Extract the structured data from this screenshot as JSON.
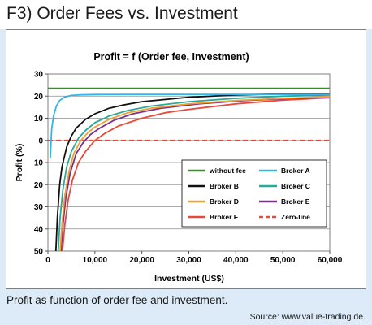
{
  "header": {
    "title": "F3) Order Fees vs. Investment"
  },
  "caption": "Profit as function of order fee and investment.",
  "source": "Source: www.value-trading.de.",
  "chart_data": {
    "type": "line",
    "title": "Profit = f (Order fee, Investment)",
    "xlabel": "Investment (US$)",
    "ylabel": "Profit (%)",
    "xlim": [
      0,
      60000
    ],
    "ylim": [
      -50,
      30
    ],
    "x_ticks": [
      0,
      10000,
      20000,
      30000,
      40000,
      50000,
      60000
    ],
    "x_tick_labels": [
      "0",
      "10,000",
      "20,000",
      "30,000",
      "40,000",
      "50,000",
      "60,000"
    ],
    "y_ticks": [
      30,
      20,
      10,
      0,
      -10,
      -20,
      -30,
      -40,
      -50
    ],
    "y_tick_labels": [
      "30",
      "20",
      "10",
      "0",
      "10",
      "20",
      "30",
      "40",
      "50"
    ],
    "grid": "horizontal",
    "legend_position": "lower-right",
    "series": [
      {
        "name": "without fee",
        "color": "#3a8a2e",
        "dash": false,
        "points": [
          [
            0,
            23.5
          ],
          [
            60000,
            23.5
          ]
        ]
      },
      {
        "name": "Broker A",
        "color": "#33b5e5",
        "dash": false,
        "points": [
          [
            500,
            -8
          ],
          [
            800,
            5
          ],
          [
            1200,
            11
          ],
          [
            1800,
            15.5
          ],
          [
            2500,
            18
          ],
          [
            3500,
            19.5
          ],
          [
            5000,
            20.3
          ],
          [
            7000,
            20.6
          ],
          [
            10000,
            20.7
          ],
          [
            20000,
            20.8
          ],
          [
            40000,
            20.8
          ],
          [
            60000,
            20.8
          ]
        ]
      },
      {
        "name": "Broker B",
        "color": "#111111",
        "dash": false,
        "points": [
          [
            1700,
            -50
          ],
          [
            2000,
            -35
          ],
          [
            2500,
            -20
          ],
          [
            3000,
            -12
          ],
          [
            4000,
            -3
          ],
          [
            5000,
            2
          ],
          [
            6000,
            5.5
          ],
          [
            8000,
            9.5
          ],
          [
            10000,
            12
          ],
          [
            13000,
            14.5
          ],
          [
            16000,
            16
          ],
          [
            20000,
            17.5
          ],
          [
            30000,
            19.5
          ],
          [
            40000,
            20.5
          ],
          [
            50000,
            21
          ],
          [
            60000,
            21
          ]
        ]
      },
      {
        "name": "Broker C",
        "color": "#2aa89a",
        "dash": false,
        "points": [
          [
            2200,
            -50
          ],
          [
            2600,
            -35
          ],
          [
            3200,
            -22
          ],
          [
            4000,
            -12
          ],
          [
            5000,
            -5
          ],
          [
            6500,
            1
          ],
          [
            8000,
            4.5
          ],
          [
            10000,
            8
          ],
          [
            13000,
            11
          ],
          [
            17000,
            13.5
          ],
          [
            22000,
            15.5
          ],
          [
            30000,
            17.5
          ],
          [
            40000,
            19
          ],
          [
            50000,
            20
          ],
          [
            60000,
            20.5
          ]
        ]
      },
      {
        "name": "Broker D",
        "color": "#f0a030",
        "dash": false,
        "points": [
          [
            2600,
            -50
          ],
          [
            3000,
            -38
          ],
          [
            3600,
            -25
          ],
          [
            4500,
            -14
          ],
          [
            5500,
            -6
          ],
          [
            7000,
            0
          ],
          [
            8500,
            3.5
          ],
          [
            10000,
            6
          ],
          [
            13000,
            9.5
          ],
          [
            17000,
            12.5
          ],
          [
            22000,
            14.5
          ],
          [
            30000,
            16.5
          ],
          [
            40000,
            18
          ],
          [
            50000,
            19
          ],
          [
            60000,
            19.8
          ]
        ]
      },
      {
        "name": "Broker E",
        "color": "#7b2f8e",
        "dash": false,
        "points": [
          [
            2800,
            -50
          ],
          [
            3200,
            -38
          ],
          [
            3800,
            -26
          ],
          [
            4700,
            -15
          ],
          [
            6000,
            -6
          ],
          [
            7500,
            -1
          ],
          [
            9000,
            2.5
          ],
          [
            11000,
            5.5
          ],
          [
            14000,
            9
          ],
          [
            18000,
            12
          ],
          [
            24000,
            14.5
          ],
          [
            32000,
            16.5
          ],
          [
            42000,
            18
          ],
          [
            52000,
            19
          ],
          [
            60000,
            19.5
          ]
        ]
      },
      {
        "name": "Broker F",
        "color": "#e8493a",
        "dash": false,
        "points": [
          [
            3100,
            -50
          ],
          [
            3600,
            -38
          ],
          [
            4300,
            -27
          ],
          [
            5200,
            -18
          ],
          [
            6500,
            -10
          ],
          [
            8000,
            -5
          ],
          [
            10000,
            0
          ],
          [
            12000,
            3
          ],
          [
            15000,
            6.5
          ],
          [
            20000,
            10
          ],
          [
            25000,
            12.5
          ],
          [
            30000,
            14
          ],
          [
            40000,
            16.5
          ],
          [
            50000,
            18.2
          ],
          [
            60000,
            19.3
          ]
        ]
      },
      {
        "name": "Zero-line",
        "color": "#e8493a",
        "dash": true,
        "points": [
          [
            0,
            0
          ],
          [
            60000,
            0
          ]
        ]
      }
    ],
    "legend_layout": [
      [
        "without fee",
        "Broker A"
      ],
      [
        "Broker B",
        "Broker C"
      ],
      [
        "Broker D",
        "Broker E"
      ],
      [
        "Broker F",
        "Zero-line"
      ]
    ]
  }
}
